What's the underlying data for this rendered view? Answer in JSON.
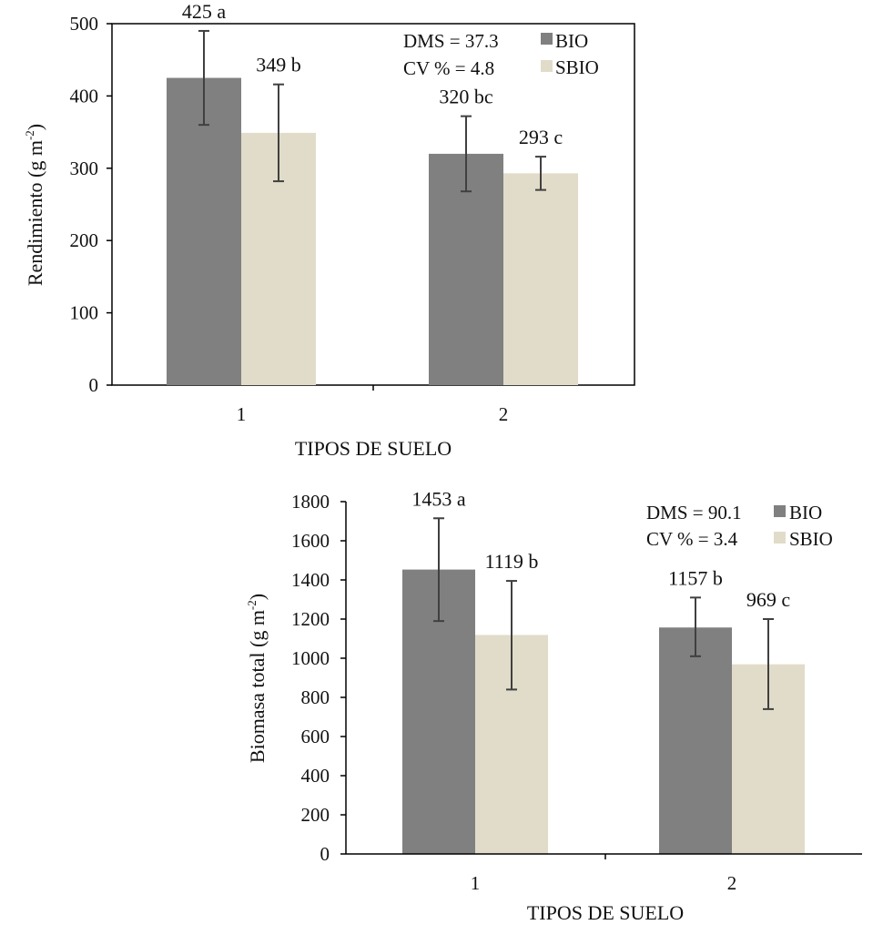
{
  "colors": {
    "BIO": "#808080",
    "SBIO": "#e1dcc9",
    "axis": "#000000",
    "error": "#404040"
  },
  "chart_data": [
    {
      "type": "bar",
      "ylabel_main": "Rendimiento",
      "ylabel_unit": "(g m",
      "ylabel_sup": "-2",
      "ylabel_close": ")",
      "xlabel": "TIPOS DE SUELO",
      "categories": [
        "1",
        "2"
      ],
      "ylim": [
        0,
        500
      ],
      "yticks": [
        0,
        100,
        200,
        300,
        400,
        500
      ],
      "series": [
        {
          "name": "BIO",
          "values": [
            425,
            320
          ],
          "err_low": [
            360,
            268
          ],
          "err_high": [
            490,
            372
          ],
          "labels": [
            "425 a",
            "320 bc"
          ]
        },
        {
          "name": "SBIO",
          "values": [
            349,
            293
          ],
          "err_low": [
            282,
            270
          ],
          "err_high": [
            416,
            316
          ],
          "labels": [
            "349 b",
            "293 c"
          ]
        }
      ],
      "stats": [
        "DMS = 37.3",
        "CV % = 4.8"
      ],
      "legend": [
        "BIO",
        "SBIO"
      ]
    },
    {
      "type": "bar",
      "ylabel_main": "Biomasa total (g m",
      "ylabel_sup": "-2",
      "ylabel_close": ")",
      "xlabel": "TIPOS DE SUELO",
      "categories": [
        "1",
        "2"
      ],
      "ylim": [
        0,
        1800
      ],
      "yticks": [
        0,
        200,
        400,
        600,
        800,
        1000,
        1200,
        1400,
        1600,
        1800
      ],
      "series": [
        {
          "name": "BIO",
          "values": [
            1453,
            1157
          ],
          "err_low": [
            1190,
            1010
          ],
          "err_high": [
            1715,
            1310
          ],
          "labels": [
            "1453 a",
            "1157 b"
          ]
        },
        {
          "name": "SBIO",
          "values": [
            1119,
            969
          ],
          "err_low": [
            840,
            740
          ],
          "err_high": [
            1395,
            1200
          ],
          "labels": [
            "1119 b",
            "969 c"
          ]
        }
      ],
      "stats": [
        "DMS = 90.1",
        "CV % = 3.4"
      ],
      "legend": [
        "BIO",
        "SBIO"
      ]
    }
  ]
}
